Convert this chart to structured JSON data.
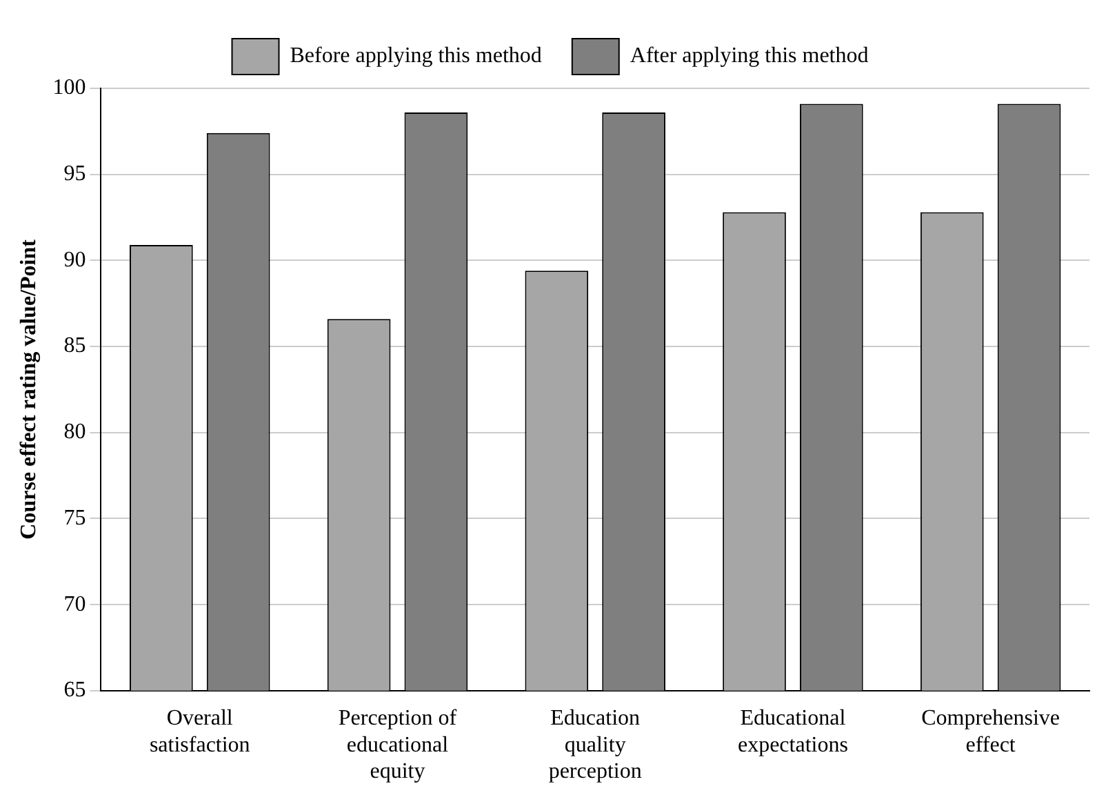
{
  "chart_data": {
    "type": "bar",
    "ylabel": "Course effect rating value/Point",
    "categories": [
      "Overall satisfaction",
      "Perception of educational equity",
      "Education quality perception",
      "Educational expectations",
      "Comprehensive effect"
    ],
    "series": [
      {
        "name": "Before applying this method",
        "color": "#a6a6a6",
        "values": [
          90.9,
          86.6,
          89.4,
          92.8,
          92.8
        ]
      },
      {
        "name": "After applying this method",
        "color": "#7f7f7f",
        "values": [
          97.4,
          98.6,
          98.6,
          99.1,
          99.1
        ]
      }
    ],
    "ylim": [
      65,
      100
    ],
    "yticks": [
      65,
      70,
      75,
      80,
      85,
      90,
      95,
      100
    ],
    "grid": "y",
    "legend": "top"
  }
}
